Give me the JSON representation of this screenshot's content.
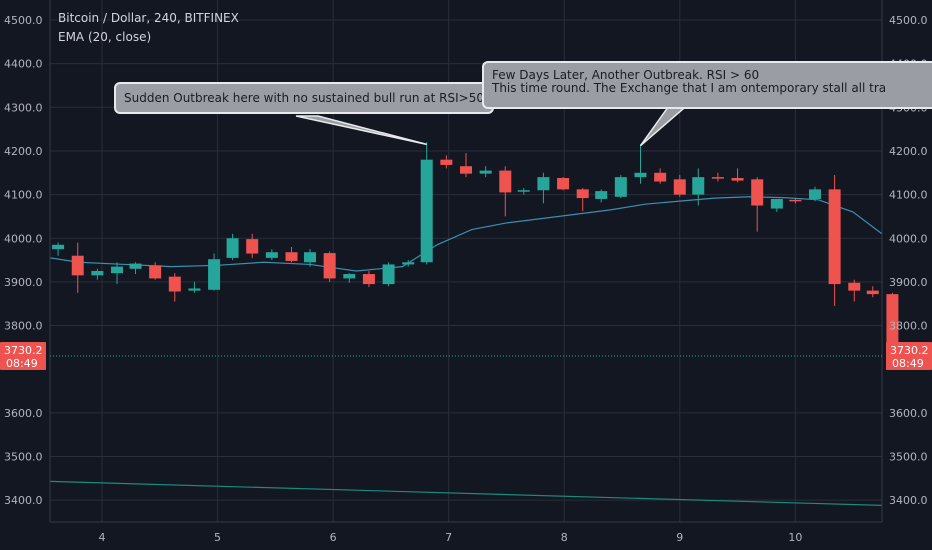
{
  "header": {
    "title": "Bitcoin / Dollar, 240, BITFINEX",
    "indicator": "EMA (20, close)"
  },
  "callouts": {
    "first": "Sudden Outbreak here with no sustained bull run at RSI>50",
    "second_line1": "Few Days Later, Another Outbreak. RSI > 60",
    "second_line2": "This time round. The Exchange that I am ontemporary stall all tra"
  },
  "price_tag": {
    "price": "3730.2",
    "countdown": "08:49"
  },
  "colors": {
    "up": "#26a69a",
    "down": "#ef5350",
    "ema": "#3b8fb0",
    "lower_line": "#1d8a7e",
    "background": "#131722"
  },
  "chart_data": {
    "type": "candlestick",
    "title": "Bitcoin / Dollar, 240, BITFINEX",
    "x_ticks": [
      "4",
      "5",
      "6",
      "7",
      "8",
      "9",
      "10"
    ],
    "y_ticks": [
      "4500.0",
      "4400.0",
      "4300.0",
      "4200.0",
      "4100.0",
      "4000.0",
      "3900.0",
      "3800.0",
      "3730.2",
      "3600.0",
      "3500.0",
      "3400.0"
    ],
    "ylim": [
      3380,
      4520
    ],
    "xlim": [
      3.55,
      10.75
    ],
    "grid": true,
    "last_price": 3730.2,
    "candles": [
      {
        "x": 3.62,
        "o": 3975,
        "h": 3990,
        "l": 3960,
        "c": 3985
      },
      {
        "x": 3.79,
        "o": 3960,
        "h": 3990,
        "l": 3875,
        "c": 3915
      },
      {
        "x": 3.96,
        "o": 3915,
        "h": 3930,
        "l": 3905,
        "c": 3925
      },
      {
        "x": 4.13,
        "o": 3920,
        "h": 3945,
        "l": 3895,
        "c": 3935
      },
      {
        "x": 4.29,
        "o": 3930,
        "h": 3945,
        "l": 3918,
        "c": 3942
      },
      {
        "x": 4.46,
        "o": 3938,
        "h": 3945,
        "l": 3905,
        "c": 3908
      },
      {
        "x": 4.63,
        "o": 3912,
        "h": 3920,
        "l": 3855,
        "c": 3878
      },
      {
        "x": 4.8,
        "o": 3880,
        "h": 3900,
        "l": 3875,
        "c": 3885
      },
      {
        "x": 4.97,
        "o": 3882,
        "h": 3965,
        "l": 3880,
        "c": 3952
      },
      {
        "x": 5.13,
        "o": 3955,
        "h": 4010,
        "l": 3950,
        "c": 4000
      },
      {
        "x": 5.3,
        "o": 3998,
        "h": 4010,
        "l": 3955,
        "c": 3965
      },
      {
        "x": 5.47,
        "o": 3955,
        "h": 3975,
        "l": 3950,
        "c": 3968
      },
      {
        "x": 5.64,
        "o": 3968,
        "h": 3980,
        "l": 3945,
        "c": 3948
      },
      {
        "x": 5.8,
        "o": 3945,
        "h": 3975,
        "l": 3935,
        "c": 3968
      },
      {
        "x": 5.97,
        "o": 3966,
        "h": 3970,
        "l": 3900,
        "c": 3908
      },
      {
        "x": 6.14,
        "o": 3908,
        "h": 3920,
        "l": 3898,
        "c": 3918
      },
      {
        "x": 6.31,
        "o": 3918,
        "h": 3925,
        "l": 3888,
        "c": 3895
      },
      {
        "x": 6.48,
        "o": 3895,
        "h": 3945,
        "l": 3890,
        "c": 3940
      },
      {
        "x": 6.65,
        "o": 3940,
        "h": 3950,
        "l": 3935,
        "c": 3945
      },
      {
        "x": 6.81,
        "o": 3945,
        "h": 4220,
        "l": 3940,
        "c": 4180
      },
      {
        "x": 6.98,
        "o": 4180,
        "h": 4190,
        "l": 4160,
        "c": 4168
      },
      {
        "x": 7.15,
        "o": 4165,
        "h": 4195,
        "l": 4140,
        "c": 4148
      },
      {
        "x": 7.32,
        "o": 4148,
        "h": 4165,
        "l": 4140,
        "c": 4155
      },
      {
        "x": 7.49,
        "o": 4155,
        "h": 4165,
        "l": 4050,
        "c": 4105
      },
      {
        "x": 7.65,
        "o": 4108,
        "h": 4115,
        "l": 4100,
        "c": 4110
      },
      {
        "x": 7.82,
        "o": 4110,
        "h": 4150,
        "l": 4080,
        "c": 4140
      },
      {
        "x": 7.99,
        "o": 4138,
        "h": 4140,
        "l": 4110,
        "c": 4112
      },
      {
        "x": 8.16,
        "o": 4112,
        "h": 4115,
        "l": 4062,
        "c": 4092
      },
      {
        "x": 8.32,
        "o": 4090,
        "h": 4112,
        "l": 4082,
        "c": 4108
      },
      {
        "x": 8.49,
        "o": 4095,
        "h": 4145,
        "l": 4092,
        "c": 4140
      },
      {
        "x": 8.66,
        "o": 4140,
        "h": 4215,
        "l": 4125,
        "c": 4150
      },
      {
        "x": 8.83,
        "o": 4150,
        "h": 4160,
        "l": 4125,
        "c": 4130
      },
      {
        "x": 9.0,
        "o": 4135,
        "h": 4145,
        "l": 4095,
        "c": 4100
      },
      {
        "x": 9.16,
        "o": 4100,
        "h": 4160,
        "l": 4075,
        "c": 4140
      },
      {
        "x": 9.33,
        "o": 4140,
        "h": 4150,
        "l": 4130,
        "c": 4138
      },
      {
        "x": 9.5,
        "o": 4138,
        "h": 4160,
        "l": 4128,
        "c": 4132
      },
      {
        "x": 9.67,
        "o": 4135,
        "h": 4140,
        "l": 4015,
        "c": 4075
      },
      {
        "x": 9.84,
        "o": 4068,
        "h": 4090,
        "l": 4060,
        "c": 4090
      },
      {
        "x": 10.0,
        "o": 4088,
        "h": 4092,
        "l": 4080,
        "c": 4085
      },
      {
        "x": 10.17,
        "o": 4090,
        "h": 4118,
        "l": 4085,
        "c": 4112
      },
      {
        "x": 10.34,
        "o": 4112,
        "h": 4145,
        "l": 3845,
        "c": 3895
      },
      {
        "x": 10.51,
        "o": 3898,
        "h": 3905,
        "l": 3855,
        "c": 3880
      },
      {
        "x": 10.67,
        "o": 3880,
        "h": 3890,
        "l": 3865,
        "c": 3872
      },
      {
        "x": 10.84,
        "o": 3872,
        "h": 3875,
        "l": 3710,
        "c": 3730
      }
    ],
    "ema": {
      "name": "EMA (20, close)",
      "x": [
        3.55,
        3.8,
        4.2,
        4.6,
        5.0,
        5.4,
        5.8,
        6.2,
        6.6,
        6.9,
        7.2,
        7.5,
        7.8,
        8.1,
        8.4,
        8.7,
        9.0,
        9.3,
        9.6,
        9.9,
        10.2,
        10.5,
        10.75
      ],
      "y": [
        3955,
        3945,
        3940,
        3935,
        3938,
        3945,
        3940,
        3925,
        3935,
        3985,
        4020,
        4035,
        4045,
        4055,
        4065,
        4078,
        4085,
        4092,
        4095,
        4093,
        4088,
        4060,
        4010
      ]
    },
    "lower_line": {
      "x": [
        3.55,
        10.75
      ],
      "y": [
        3443,
        3388
      ]
    }
  }
}
